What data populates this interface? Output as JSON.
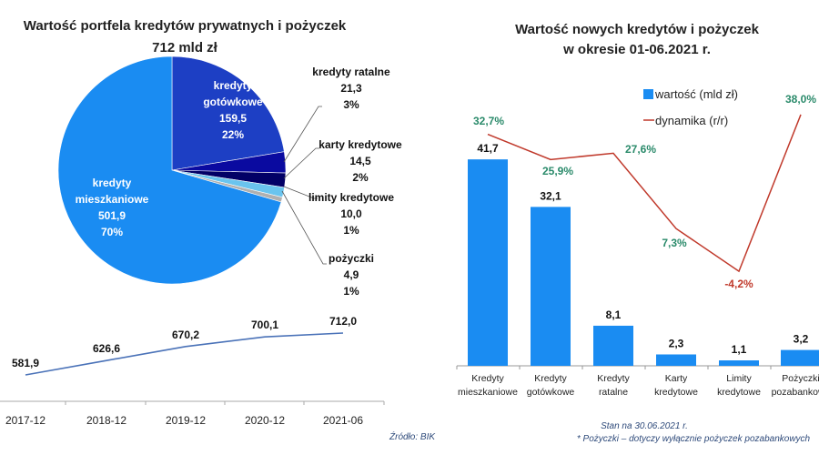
{
  "chart_data": [
    {
      "type": "pie",
      "title": "Wartość portfela kredytów prywatnych i pożyczek",
      "subtitle": "712 mld zł",
      "slices": [
        {
          "label": "kredyty gotówkowe",
          "value": "159,5",
          "v": 159.5,
          "pct": "22%",
          "color": "#1d3fc4"
        },
        {
          "label": "kredyty ratalne",
          "value": "21,3",
          "v": 21.3,
          "pct": "3%",
          "color": "#0a0aa0"
        },
        {
          "label": "karty kredytowe",
          "value": "14,5",
          "v": 14.5,
          "pct": "2%",
          "color": "#020066"
        },
        {
          "label": "limity kredytowe",
          "value": "10,0",
          "v": 10.0,
          "pct": "1%",
          "color": "#6ac4ee"
        },
        {
          "label": "pożyczki",
          "value": "4,9",
          "v": 4.9,
          "pct": "1%",
          "color": "#b0b0b0"
        },
        {
          "label": "kredyty mieszkaniowe",
          "value": "501,9",
          "v": 501.9,
          "pct": "70%",
          "color": "#1a8cf2"
        }
      ]
    },
    {
      "type": "line",
      "categories": [
        "2017-12",
        "2018-12",
        "2019-12",
        "2020-12",
        "2021-06"
      ],
      "values": [
        581.9,
        626.6,
        670.2,
        700.1,
        712.0
      ],
      "labels": [
        "581,9",
        "626,6",
        "670,2",
        "700,1",
        "712,0"
      ],
      "color": "#4a72b8"
    },
    {
      "type": "bar+line",
      "title": "Wartość nowych kredytów i pożyczek",
      "subtitle": "w okresie 01-06.2021 r.",
      "categories": [
        [
          "Kredyty",
          "mieszkaniowe"
        ],
        [
          "Kredyty",
          "gotówkowe"
        ],
        [
          "Kredyty",
          "ratalne"
        ],
        [
          "Karty",
          "kredytowe"
        ],
        [
          "Limity",
          "kredytowe"
        ],
        [
          "Pożyczki",
          "pozabankowe"
        ]
      ],
      "series": [
        {
          "name": "wartość (mld zł)",
          "values": [
            41.7,
            32.1,
            8.1,
            2.3,
            1.1,
            3.2
          ],
          "labels": [
            "41,7",
            "32,1",
            "8,1",
            "2,3",
            "1,1",
            "3,2"
          ],
          "color": "#1a8cf2"
        },
        {
          "name": "dynamika (r/r)",
          "values": [
            32.7,
            25.9,
            27.6,
            7.3,
            -4.2,
            38.0
          ],
          "labels": [
            "32,7%",
            "25,9%",
            "27,6%",
            "7,3%",
            "-4,2%",
            "38,0%"
          ],
          "color": "#c0392b"
        }
      ],
      "positive_color": "#2a8a6a",
      "negative_color": "#c0392b"
    }
  ],
  "source": "Źródło: BIK",
  "footnote1": "Stan na 30.06.2021 r.",
  "footnote2": "* Pożyczki – dotyczy wyłącznie pożyczek pozabankowych"
}
